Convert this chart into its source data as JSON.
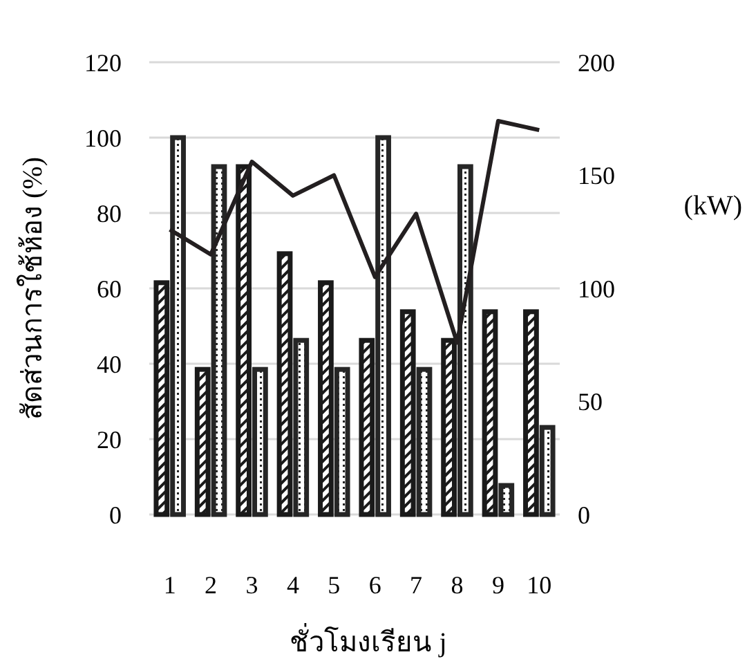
{
  "chart_data": {
    "type": "bar",
    "xlabel": "ชั่วโมงเรียน j",
    "ylabel": "สัดส่วนการใช้ห้อง (%)",
    "y2label": "(kW)",
    "categories": [
      "1",
      "2",
      "3",
      "4",
      "5",
      "6",
      "7",
      "8",
      "9",
      "10"
    ],
    "series": [
      {
        "color": "#1a1a1a",
        "values": [
          61.5,
          38.5,
          92.3,
          69.2,
          61.5,
          46.2,
          53.8,
          46.2,
          53.8,
          53.8
        ]
      },
      {
        "color": "#262626",
        "values": [
          100,
          92.3,
          38.5,
          46.2,
          38.5,
          100,
          38.5,
          92.3,
          7.7,
          23.1
        ]
      },
      {
        "type": "line",
        "axis": "y2",
        "color": "#231f20",
        "values": [
          126,
          115,
          156,
          141,
          150,
          105,
          133,
          76,
          174,
          170
        ]
      }
    ],
    "ylim": [
      0,
      120
    ],
    "yticks": [
      0,
      20,
      40,
      60,
      80,
      100,
      120
    ],
    "y2lim": [
      0,
      200
    ],
    "y2ticks": [
      0,
      50,
      100,
      150,
      200
    ],
    "grid": "y"
  }
}
